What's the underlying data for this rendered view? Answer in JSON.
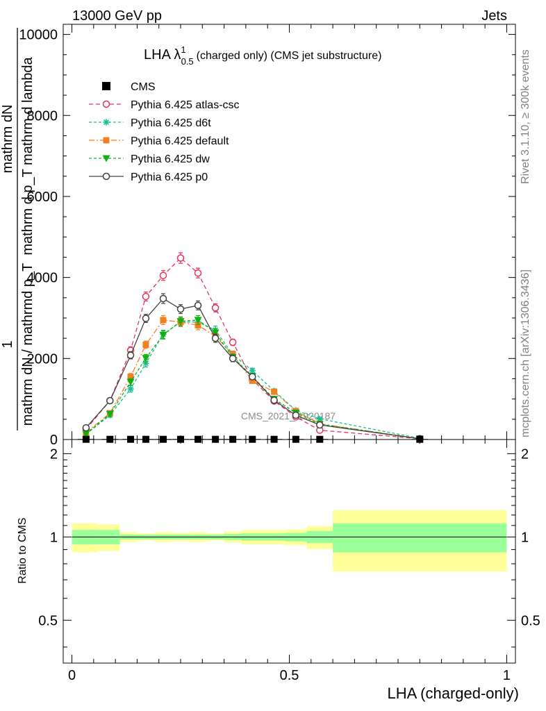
{
  "header": {
    "left": "13000 GeV pp",
    "right": "Jets"
  },
  "side_labels": {
    "rivet": "Rivet 3.1.10, ≥ 300k events",
    "mcplots": "mcplots.cern.ch [arXiv:1306.3436]"
  },
  "watermark": "CMS_2021_I1920187",
  "chart_data": [
    {
      "type": "line",
      "title": "LHA λ",
      "title_sup": "1",
      "title_sub": "0.5",
      "title_suffix": "(charged only) (CMS jet substructure)",
      "ylabel_num": "mathrm dN",
      "ylabel_den": "mathrm d p_T mathrm d lambda",
      "ylabel_prefix_num": "1",
      "ylabel_prefix_den": "mathrm dN / mathrmd p_T",
      "ylim": [
        0,
        10250
      ],
      "yticks": [
        0,
        2000,
        4000,
        6000,
        8000,
        10000
      ],
      "ytick_labels": [
        "0",
        "2000",
        "4000",
        "6000",
        "8000",
        "10000"
      ],
      "xlim": [
        -0.02,
        1.02
      ],
      "x": [
        0.0325,
        0.0875,
        0.135,
        0.17,
        0.21,
        0.25,
        0.29,
        0.33,
        0.37,
        0.415,
        0.465,
        0.515,
        0.57,
        0.8
      ],
      "data": {
        "name": "CMS",
        "color": "#000000",
        "values": [
          5,
          5,
          5,
          5,
          5,
          5,
          5,
          5,
          5,
          5,
          5,
          5,
          5,
          5
        ]
      },
      "series": [
        {
          "name": "Pythia 6.425 atlas-csc",
          "color": "#e8305a",
          "marker": "circle-open",
          "dash": "6,4",
          "values": [
            250,
            960,
            2200,
            3530,
            4050,
            4480,
            4110,
            3250,
            2400,
            1480,
            950,
            560,
            230,
            20
          ],
          "errors": [
            40,
            60,
            90,
            110,
            120,
            130,
            120,
            100,
            80,
            60,
            50,
            40,
            30,
            10
          ]
        },
        {
          "name": "Pythia 6.425 d6t",
          "color": "#10c090",
          "marker": "star",
          "dash": "4,3",
          "values": [
            130,
            600,
            1250,
            1880,
            2600,
            2900,
            2900,
            2700,
            2100,
            1700,
            1200,
            720,
            510,
            30
          ],
          "errors": [
            30,
            50,
            80,
            90,
            100,
            110,
            110,
            100,
            80,
            60,
            50,
            40,
            30,
            10
          ]
        },
        {
          "name": "Pythia 6.425 default",
          "color": "#f08020",
          "marker": "square",
          "dash": "8,3,2,3",
          "values": [
            170,
            650,
            1550,
            2340,
            2950,
            2900,
            2820,
            2550,
            2100,
            1450,
            1180,
            700,
            390,
            20
          ],
          "errors": [
            30,
            50,
            80,
            90,
            110,
            110,
            110,
            100,
            80,
            60,
            50,
            40,
            30,
            10
          ]
        },
        {
          "name": "Pythia 6.425 dw",
          "color": "#10b010",
          "marker": "triangle-down",
          "dash": "4,3",
          "values": [
            140,
            630,
            1420,
            2010,
            2580,
            2920,
            2950,
            2640,
            2030,
            1560,
            1000,
            660,
            380,
            20
          ],
          "errors": [
            30,
            50,
            80,
            90,
            100,
            110,
            110,
            100,
            80,
            60,
            50,
            40,
            30,
            10
          ]
        },
        {
          "name": "Pythia 6.425 p0",
          "color": "#404040",
          "marker": "circle-open",
          "dash": "",
          "values": [
            290,
            960,
            2080,
            2990,
            3480,
            3220,
            3310,
            2500,
            2000,
            1550,
            970,
            600,
            360,
            20
          ],
          "errors": [
            40,
            60,
            90,
            100,
            120,
            110,
            110,
            100,
            80,
            60,
            50,
            40,
            30,
            10
          ]
        }
      ]
    },
    {
      "type": "area",
      "ylabel": "Ratio to CMS",
      "xlabel": "LHA (charged-only)",
      "ylim": [
        0.35,
        2.25
      ],
      "yticks": [
        0.5,
        1,
        2
      ],
      "ytick_labels": [
        "0.5",
        "1",
        "2"
      ],
      "xlim": [
        -0.02,
        1.02
      ],
      "xticks": [
        0,
        0.5,
        1
      ],
      "xtick_labels": [
        "0",
        "0.5",
        "1"
      ],
      "bins": [
        {
          "lo": 0.0,
          "hi": 0.06,
          "inner": 0.06,
          "outer": 0.12
        },
        {
          "lo": 0.06,
          "hi": 0.11,
          "inner": 0.06,
          "outer": 0.11
        },
        {
          "lo": 0.11,
          "hi": 0.15,
          "inner": 0.02,
          "outer": 0.04
        },
        {
          "lo": 0.15,
          "hi": 0.19,
          "inner": 0.02,
          "outer": 0.03
        },
        {
          "lo": 0.19,
          "hi": 0.23,
          "inner": 0.02,
          "outer": 0.04
        },
        {
          "lo": 0.23,
          "hi": 0.27,
          "inner": 0.02,
          "outer": 0.035
        },
        {
          "lo": 0.27,
          "hi": 0.31,
          "inner": 0.02,
          "outer": 0.04
        },
        {
          "lo": 0.31,
          "hi": 0.35,
          "inner": 0.02,
          "outer": 0.03
        },
        {
          "lo": 0.35,
          "hi": 0.39,
          "inner": 0.025,
          "outer": 0.045
        },
        {
          "lo": 0.39,
          "hi": 0.44,
          "inner": 0.03,
          "outer": 0.06
        },
        {
          "lo": 0.44,
          "hi": 0.49,
          "inner": 0.03,
          "outer": 0.06
        },
        {
          "lo": 0.49,
          "hi": 0.54,
          "inner": 0.035,
          "outer": 0.065
        },
        {
          "lo": 0.54,
          "hi": 0.6,
          "inner": 0.05,
          "outer": 0.095
        },
        {
          "lo": 0.6,
          "hi": 1.0,
          "inner": 0.12,
          "outer": 0.25
        }
      ],
      "inner_color": "#99ff99",
      "outer_color": "#ffff99"
    }
  ]
}
